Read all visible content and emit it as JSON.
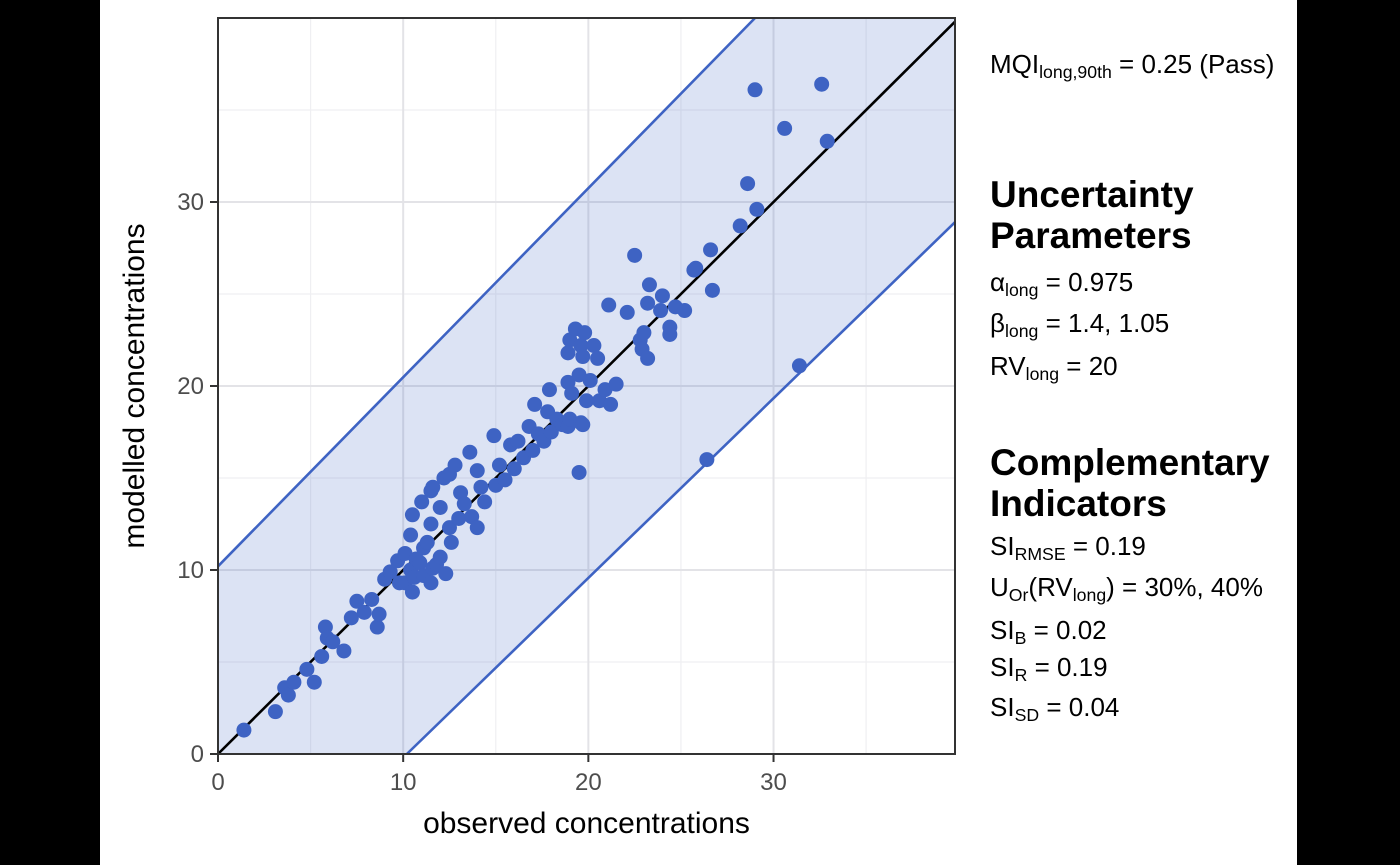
{
  "page": {
    "background": "#000000",
    "canvas_background": "#ffffff"
  },
  "chart_data": {
    "type": "scatter",
    "title": "",
    "xlabel": "observed concentrations",
    "ylabel": "modelled concentrations",
    "xlim": [
      0,
      39.8
    ],
    "ylim": [
      0,
      40
    ],
    "x_ticks": [
      0,
      10,
      20,
      30
    ],
    "y_ticks": [
      0,
      10,
      20,
      30
    ],
    "x_minor": [
      5,
      15,
      25,
      35
    ],
    "y_minor": [
      5,
      15,
      25,
      35
    ],
    "grid": true,
    "legend": "none",
    "point_color": "#3e63c3",
    "point_radius": 7.5,
    "grid_major_color": "#e3e3e7",
    "grid_minor_color": "#efeff2",
    "panel_border_color": "#333333",
    "tick_color": "#333333",
    "tick_label_color": "#4d4d4d",
    "axis_title_color": "#000000",
    "identity_line": {
      "color": "#000000",
      "points": [
        [
          0,
          0
        ],
        [
          39.8,
          39.8
        ]
      ]
    },
    "uncertainty_band": {
      "fill_color": "#3e63c3",
      "fill_opacity": 0.18,
      "line_color": "#3e63c3",
      "polygon": [
        [
          0,
          0
        ],
        [
          0,
          10.2
        ],
        [
          29.0,
          40
        ],
        [
          39.8,
          40
        ],
        [
          39.8,
          28.9
        ],
        [
          10.2,
          0
        ]
      ],
      "upper_line": [
        [
          0,
          10.2
        ],
        [
          29.0,
          40
        ]
      ],
      "lower_line": [
        [
          10.2,
          0
        ],
        [
          39.8,
          28.9
        ]
      ]
    },
    "points": [
      [
        1.4,
        1.3
      ],
      [
        3.1,
        2.3
      ],
      [
        3.6,
        3.6
      ],
      [
        3.8,
        3.2
      ],
      [
        4.1,
        3.9
      ],
      [
        4.8,
        4.6
      ],
      [
        5.2,
        3.9
      ],
      [
        5.6,
        5.3
      ],
      [
        5.8,
        6.9
      ],
      [
        5.9,
        6.3
      ],
      [
        6.2,
        6.1
      ],
      [
        6.8,
        5.6
      ],
      [
        7.2,
        7.4
      ],
      [
        7.5,
        8.3
      ],
      [
        7.9,
        7.7
      ],
      [
        8.3,
        8.4
      ],
      [
        8.6,
        6.9
      ],
      [
        8.7,
        7.6
      ],
      [
        9.0,
        9.5
      ],
      [
        9.3,
        9.9
      ],
      [
        9.7,
        10.5
      ],
      [
        9.8,
        9.3
      ],
      [
        10.1,
        9.3
      ],
      [
        10.1,
        10.9
      ],
      [
        10.4,
        10.0
      ],
      [
        10.4,
        11.9
      ],
      [
        10.5,
        8.8
      ],
      [
        10.5,
        13.0
      ],
      [
        10.6,
        9.6
      ],
      [
        10.7,
        10.6
      ],
      [
        10.9,
        10.4
      ],
      [
        11.0,
        13.7
      ],
      [
        11.1,
        11.2
      ],
      [
        11.1,
        9.7
      ],
      [
        11.3,
        11.5
      ],
      [
        11.5,
        9.3
      ],
      [
        11.5,
        12.5
      ],
      [
        11.5,
        14.3
      ],
      [
        11.6,
        10.1
      ],
      [
        11.6,
        14.5
      ],
      [
        11.8,
        10.3
      ],
      [
        12.0,
        10.7
      ],
      [
        12.0,
        13.4
      ],
      [
        12.2,
        15.0
      ],
      [
        12.3,
        9.8
      ],
      [
        12.5,
        12.3
      ],
      [
        12.5,
        15.2
      ],
      [
        12.6,
        11.5
      ],
      [
        12.8,
        15.7
      ],
      [
        13.0,
        12.8
      ],
      [
        13.1,
        14.2
      ],
      [
        13.3,
        13.6
      ],
      [
        13.6,
        16.4
      ],
      [
        13.7,
        12.9
      ],
      [
        14.0,
        12.3
      ],
      [
        14.0,
        15.4
      ],
      [
        14.2,
        14.5
      ],
      [
        14.4,
        13.7
      ],
      [
        14.9,
        17.3
      ],
      [
        15.0,
        14.6
      ],
      [
        15.2,
        15.7
      ],
      [
        15.5,
        14.9
      ],
      [
        15.8,
        16.8
      ],
      [
        16.0,
        15.5
      ],
      [
        16.2,
        17.0
      ],
      [
        16.5,
        16.1
      ],
      [
        16.8,
        17.8
      ],
      [
        17.0,
        16.5
      ],
      [
        17.1,
        19.0
      ],
      [
        17.3,
        17.4
      ],
      [
        17.6,
        17.0
      ],
      [
        17.8,
        18.6
      ],
      [
        17.9,
        19.8
      ],
      [
        18.0,
        17.5
      ],
      [
        18.3,
        18.2
      ],
      [
        18.6,
        17.9
      ],
      [
        18.9,
        17.8
      ],
      [
        18.9,
        20.2
      ],
      [
        18.9,
        21.8
      ],
      [
        19.0,
        18.2
      ],
      [
        19.0,
        22.5
      ],
      [
        19.1,
        19.6
      ],
      [
        19.3,
        23.1
      ],
      [
        19.5,
        15.3
      ],
      [
        19.5,
        20.6
      ],
      [
        19.6,
        18.0
      ],
      [
        19.6,
        22.2
      ],
      [
        19.7,
        17.9
      ],
      [
        19.7,
        21.6
      ],
      [
        19.8,
        22.9
      ],
      [
        19.9,
        19.2
      ],
      [
        20.1,
        20.3
      ],
      [
        20.3,
        22.2
      ],
      [
        20.5,
        21.5
      ],
      [
        20.6,
        19.2
      ],
      [
        20.9,
        19.8
      ],
      [
        21.1,
        24.4
      ],
      [
        21.2,
        19.0
      ],
      [
        21.5,
        20.1
      ],
      [
        22.1,
        24.0
      ],
      [
        22.5,
        27.1
      ],
      [
        22.8,
        22.5
      ],
      [
        22.9,
        22.0
      ],
      [
        23.0,
        22.9
      ],
      [
        23.2,
        21.5
      ],
      [
        23.2,
        24.5
      ],
      [
        23.3,
        25.5
      ],
      [
        23.9,
        24.1
      ],
      [
        24.0,
        24.9
      ],
      [
        24.4,
        22.8
      ],
      [
        24.4,
        23.2
      ],
      [
        24.7,
        24.3
      ],
      [
        25.2,
        24.1
      ],
      [
        25.7,
        26.3
      ],
      [
        25.8,
        26.4
      ],
      [
        26.4,
        16.0
      ],
      [
        26.6,
        27.4
      ],
      [
        26.7,
        25.2
      ],
      [
        28.2,
        28.7
      ],
      [
        28.6,
        31.0
      ],
      [
        29.0,
        36.1
      ],
      [
        29.1,
        29.6
      ],
      [
        30.6,
        34.0
      ],
      [
        31.4,
        21.1
      ],
      [
        32.6,
        36.4
      ],
      [
        32.9,
        33.3
      ]
    ]
  },
  "stats": {
    "mqi": {
      "parts": [
        {
          "text": "MQI"
        },
        {
          "sub": "long,90th"
        },
        {
          "text": " = 0.25 (Pass)"
        }
      ]
    },
    "uncertainty": {
      "heading": [
        "Uncertainty",
        "Parameters"
      ],
      "alpha": {
        "parts": [
          {
            "text": "α"
          },
          {
            "sub": "long"
          },
          {
            "text": " = 0.975"
          }
        ]
      },
      "beta": {
        "parts": [
          {
            "text": "β"
          },
          {
            "sub": "long"
          },
          {
            "text": " = 1.4, 1.05"
          }
        ]
      },
      "rv": {
        "parts": [
          {
            "text": "RV"
          },
          {
            "sub": "long"
          },
          {
            "text": " = 20"
          }
        ]
      }
    },
    "complementary": {
      "heading": [
        "Complementary",
        "Indicators"
      ],
      "si_rmse": {
        "parts": [
          {
            "text": "SI"
          },
          {
            "sub": "RMSE"
          },
          {
            "text": " = 0.19"
          }
        ]
      },
      "u_or": {
        "parts": [
          {
            "text": "U"
          },
          {
            "sub": "Or"
          },
          {
            "text": "(RV"
          },
          {
            "sub": "long"
          },
          {
            "text": ") = 30%, 40%"
          }
        ]
      },
      "si_b": {
        "parts": [
          {
            "text": "SI"
          },
          {
            "sub": "B"
          },
          {
            "text": " = 0.02"
          }
        ]
      },
      "si_r": {
        "parts": [
          {
            "text": "SI"
          },
          {
            "sub": "R"
          },
          {
            "text": " = 0.19"
          }
        ]
      },
      "si_sd": {
        "parts": [
          {
            "text": "SI"
          },
          {
            "sub": "SD"
          },
          {
            "text": " = 0.04"
          }
        ]
      }
    }
  }
}
